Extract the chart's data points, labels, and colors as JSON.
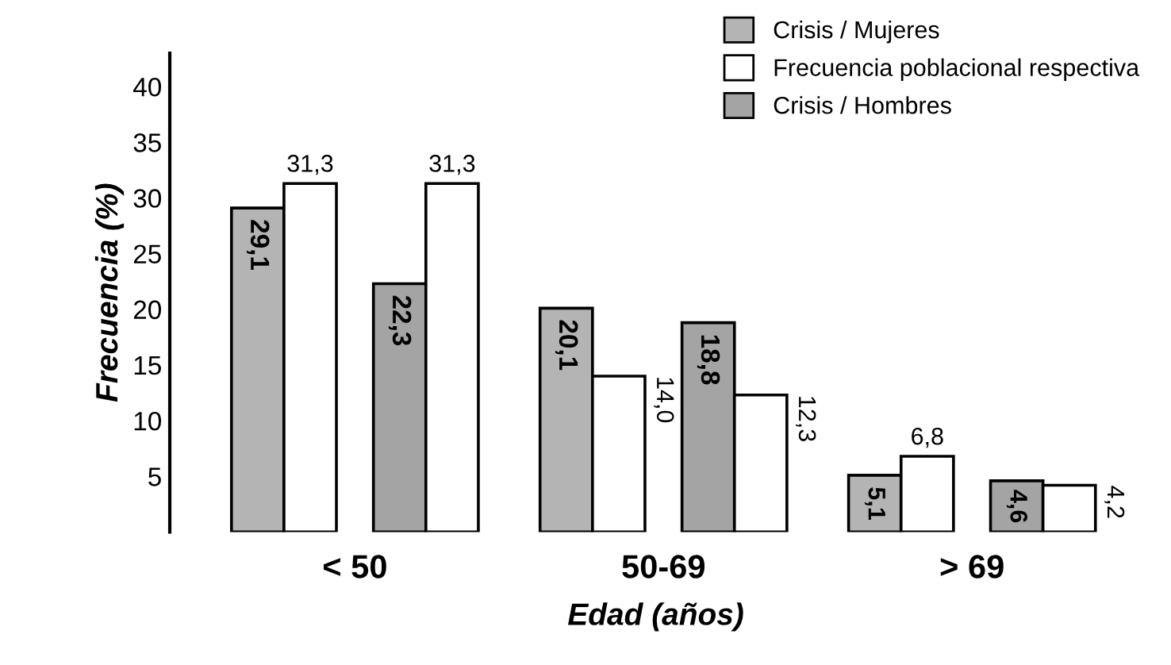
{
  "chart_data": {
    "type": "bar",
    "xlabel": "Edad (años)",
    "ylabel": "Frecuencia (%)",
    "categories": [
      "< 50",
      "50-69",
      "> 69"
    ],
    "series": [
      {
        "name": "Crisis / Mujeres",
        "color": "#b4b4b4",
        "values": [
          29.1,
          20.1,
          5.1
        ],
        "value_labels": [
          "29,1",
          "20,1",
          "5,1"
        ]
      },
      {
        "name": "Frecuencia poblacional respectiva",
        "color": "#ffffff",
        "values": [
          31.3,
          14.0,
          6.8
        ],
        "value_labels": [
          "31,3",
          "14,0",
          "6,8"
        ]
      },
      {
        "name": "Crisis / Hombres",
        "color": "#a4a4a4",
        "values": [
          22.3,
          18.8,
          4.6
        ],
        "value_labels": [
          "22,3",
          "18,8",
          "4,6"
        ]
      },
      {
        "color": "#ffffff",
        "values": [
          31.3,
          12.3,
          4.2
        ],
        "value_labels": [
          "31,3",
          "12,3",
          "4,2"
        ]
      }
    ],
    "ylim": [
      0,
      43
    ],
    "yticks": [
      5,
      10,
      15,
      20,
      25,
      30,
      35,
      40
    ],
    "legend": "top right",
    "grid": false
  }
}
